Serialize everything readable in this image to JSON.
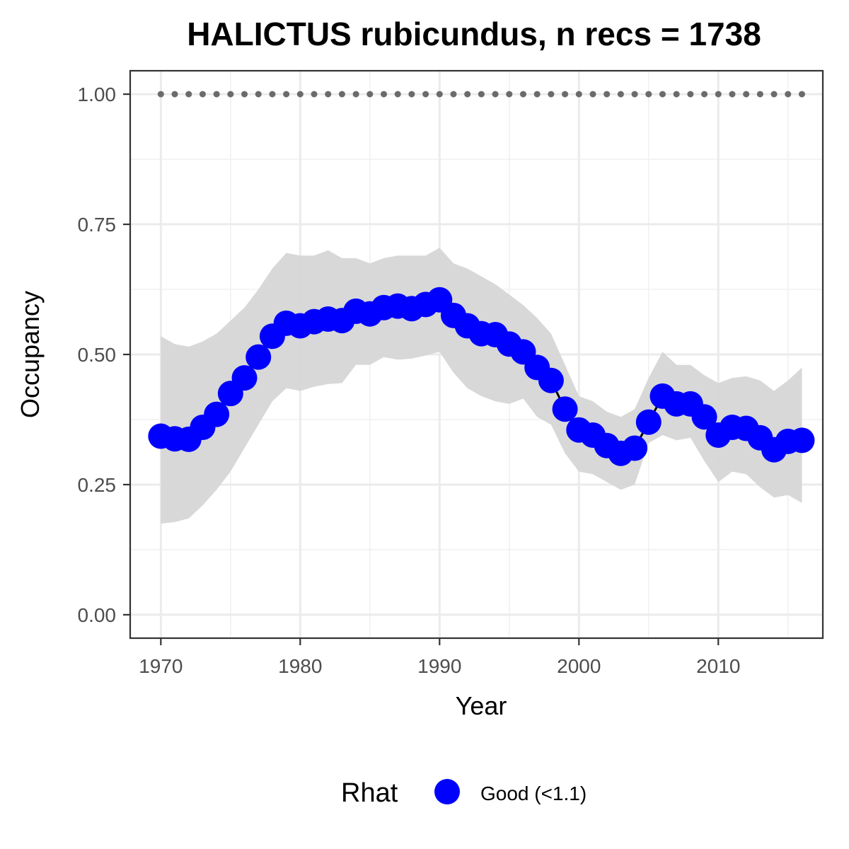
{
  "chart_data": {
    "type": "line",
    "title": "HALICTUS rubicundus, n recs = 1738",
    "xlabel": "Year",
    "ylabel": "Occupancy",
    "xlim": [
      1967.8,
      2017.5
    ],
    "ylim": [
      -0.045,
      1.045
    ],
    "x_ticks": [
      1970,
      1980,
      1990,
      2000,
      2010
    ],
    "x_tick_labels": [
      "1970",
      "1980",
      "1990",
      "2000",
      "2010"
    ],
    "x_minor_ticks": [
      1975,
      1985,
      1995,
      2005,
      2015
    ],
    "y_ticks": [
      0,
      0.25,
      0.5,
      0.75,
      1.0
    ],
    "y_tick_labels": [
      "0.00",
      "0.25",
      "0.50",
      "0.75",
      "1.00"
    ],
    "y_minor_ticks": [
      0.125,
      0.375,
      0.625,
      0.875
    ],
    "grid": true,
    "legend": {
      "title": "Rhat",
      "position": "bottom",
      "entries": [
        {
          "label": "Good (<1.1)",
          "color": "#0000ff"
        }
      ]
    },
    "colors": {
      "points": "#0000ff",
      "line": "#000000",
      "ribbon": "#d6d6d6",
      "reference": "#6b6b6b"
    },
    "x": [
      1970,
      1971,
      1972,
      1973,
      1974,
      1975,
      1976,
      1977,
      1978,
      1979,
      1980,
      1981,
      1982,
      1983,
      1984,
      1985,
      1986,
      1987,
      1988,
      1989,
      1990,
      1991,
      1992,
      1993,
      1994,
      1995,
      1996,
      1997,
      1998,
      1999,
      2000,
      2001,
      2002,
      2003,
      2004,
      2005,
      2006,
      2007,
      2008,
      2009,
      2010,
      2011,
      2012,
      2013,
      2014,
      2015,
      2016
    ],
    "series": [
      {
        "type": "points+line",
        "values": [
          0.343,
          0.338,
          0.337,
          0.36,
          0.385,
          0.425,
          0.455,
          0.495,
          0.535,
          0.56,
          0.555,
          0.563,
          0.568,
          0.565,
          0.583,
          0.578,
          0.59,
          0.593,
          0.588,
          0.596,
          0.605,
          0.575,
          0.555,
          0.54,
          0.538,
          0.52,
          0.505,
          0.475,
          0.45,
          0.395,
          0.355,
          0.345,
          0.325,
          0.31,
          0.32,
          0.37,
          0.42,
          0.405,
          0.405,
          0.38,
          0.345,
          0.36,
          0.358,
          0.34,
          0.317,
          0.333,
          0.335
        ]
      },
      {
        "type": "ribbon",
        "lower": [
          0.175,
          0.178,
          0.185,
          0.21,
          0.24,
          0.275,
          0.32,
          0.365,
          0.41,
          0.435,
          0.43,
          0.438,
          0.443,
          0.445,
          0.48,
          0.48,
          0.495,
          0.49,
          0.492,
          0.498,
          0.505,
          0.465,
          0.435,
          0.42,
          0.41,
          0.405,
          0.415,
          0.38,
          0.365,
          0.31,
          0.275,
          0.27,
          0.255,
          0.24,
          0.25,
          0.33,
          0.345,
          0.335,
          0.34,
          0.295,
          0.255,
          0.275,
          0.27,
          0.245,
          0.225,
          0.23,
          0.215
        ],
        "upper": [
          0.535,
          0.52,
          0.515,
          0.525,
          0.54,
          0.565,
          0.59,
          0.625,
          0.665,
          0.695,
          0.69,
          0.69,
          0.7,
          0.685,
          0.685,
          0.675,
          0.685,
          0.69,
          0.69,
          0.69,
          0.705,
          0.675,
          0.665,
          0.65,
          0.635,
          0.615,
          0.595,
          0.57,
          0.54,
          0.48,
          0.42,
          0.41,
          0.39,
          0.38,
          0.395,
          0.455,
          0.505,
          0.48,
          0.48,
          0.46,
          0.445,
          0.455,
          0.458,
          0.45,
          0.43,
          0.45,
          0.475
        ]
      },
      {
        "type": "reference-dots",
        "value": 1.0
      }
    ]
  }
}
